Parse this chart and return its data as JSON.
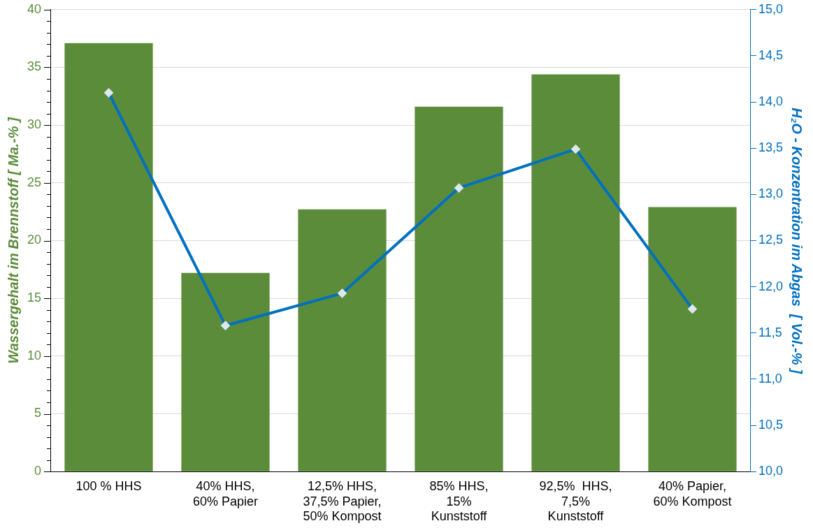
{
  "chart_data": {
    "type": "bar",
    "categories": [
      "100 % HHS",
      "40% HHS,\n60% Papier",
      "12,5% HHS,\n37,5% Papier,\n50% Kompost",
      "85% HHS,\n15%\nKunststoff",
      "92,5%  HHS,\n7,5%\nKunststoff",
      "40% Papier,\n60% Kompost"
    ],
    "series": [
      {
        "color": "#5b8c3a",
        "values": [
          37.1,
          17.2,
          22.7,
          31.6,
          34.4,
          22.9
        ]
      },
      {
        "type": "line",
        "axis": "y2",
        "color": "#0070c0",
        "values": [
          14.1,
          11.58,
          11.93,
          13.07,
          13.49,
          11.76
        ]
      }
    ],
    "ylabel": "Wassergehalt im Brennstoff [ Ma.-% ]",
    "y2label": "H₂O - Konzentration im Abgas  [ Vol.-% ]",
    "ylim": [
      0,
      40
    ],
    "yticks": [
      0,
      {
        "value": 1,
        "label": null
      },
      {
        "value": 2,
        "label": null
      },
      {
        "value": 3,
        "label": null
      },
      {
        "value": 4,
        "label": null
      },
      5,
      {
        "value": 6,
        "label": null
      },
      {
        "value": 7,
        "label": null
      },
      {
        "value": 8,
        "label": null
      },
      {
        "value": 9,
        "label": null
      },
      10,
      {
        "value": 11,
        "label": null
      },
      {
        "value": 12,
        "label": null
      },
      {
        "value": 13,
        "label": null
      },
      {
        "value": 14,
        "label": null
      },
      15,
      {
        "value": 16,
        "label": null
      },
      {
        "value": 17,
        "label": null
      },
      {
        "value": 18,
        "label": null
      },
      {
        "value": 19,
        "label": null
      },
      20,
      {
        "value": 21,
        "label": null
      },
      {
        "value": 22,
        "label": null
      },
      {
        "value": 23,
        "label": null
      },
      {
        "value": 24,
        "label": null
      },
      25,
      {
        "value": 26,
        "label": null
      },
      {
        "value": 27,
        "label": null
      },
      {
        "value": 28,
        "label": null
      },
      {
        "value": 29,
        "label": null
      },
      30,
      {
        "value": 31,
        "label": null
      },
      {
        "value": 32,
        "label": null
      },
      {
        "value": 33,
        "label": null
      },
      {
        "value": 34,
        "label": null
      },
      35,
      {
        "value": 36,
        "label": null
      },
      {
        "value": 37,
        "label": null
      },
      {
        "value": 38,
        "label": null
      },
      {
        "value": 39,
        "label": null
      },
      40
    ],
    "y2lim": [
      10,
      15
    ],
    "y2ticks": [
      {
        "value": 10,
        "label": "10,0"
      },
      {
        "value": 10.5,
        "label": "10,5"
      },
      {
        "value": 11,
        "label": "11,0"
      },
      {
        "value": 11.5,
        "label": "11,5"
      },
      {
        "value": 12,
        "label": "12,0"
      },
      {
        "value": 12.5,
        "label": "12,5"
      },
      {
        "value": 13,
        "label": "13,0"
      },
      {
        "value": 13.5,
        "label": "13,5"
      },
      {
        "value": 14,
        "label": "14,0"
      },
      {
        "value": 14.5,
        "label": "14,5"
      },
      {
        "value": 15,
        "label": "15,0"
      }
    ],
    "grid": "y",
    "legend": false,
    "marker": "diamond",
    "line_style": "solid"
  }
}
